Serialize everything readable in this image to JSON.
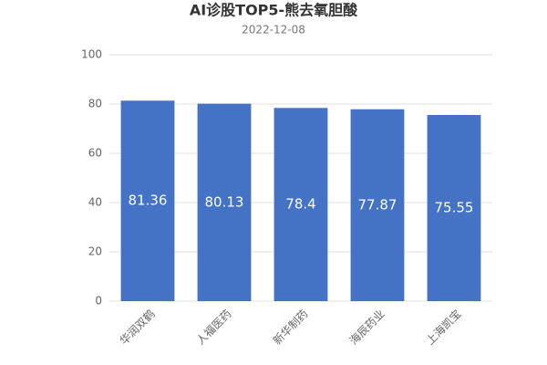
{
  "chart_data": {
    "type": "bar",
    "title": "AI诊股TOP5-熊去氧胆酸",
    "subtitle": "2022-12-08",
    "categories": [
      "华润双鹤",
      "人福医药",
      "新华制药",
      "海辰药业",
      "上海凯宝"
    ],
    "values": [
      81.36,
      80.13,
      78.4,
      77.87,
      75.55
    ],
    "color": "#4472c4",
    "ylim": [
      0,
      100
    ],
    "yticks": [
      0,
      20,
      40,
      60,
      80,
      100
    ],
    "grid": true
  }
}
